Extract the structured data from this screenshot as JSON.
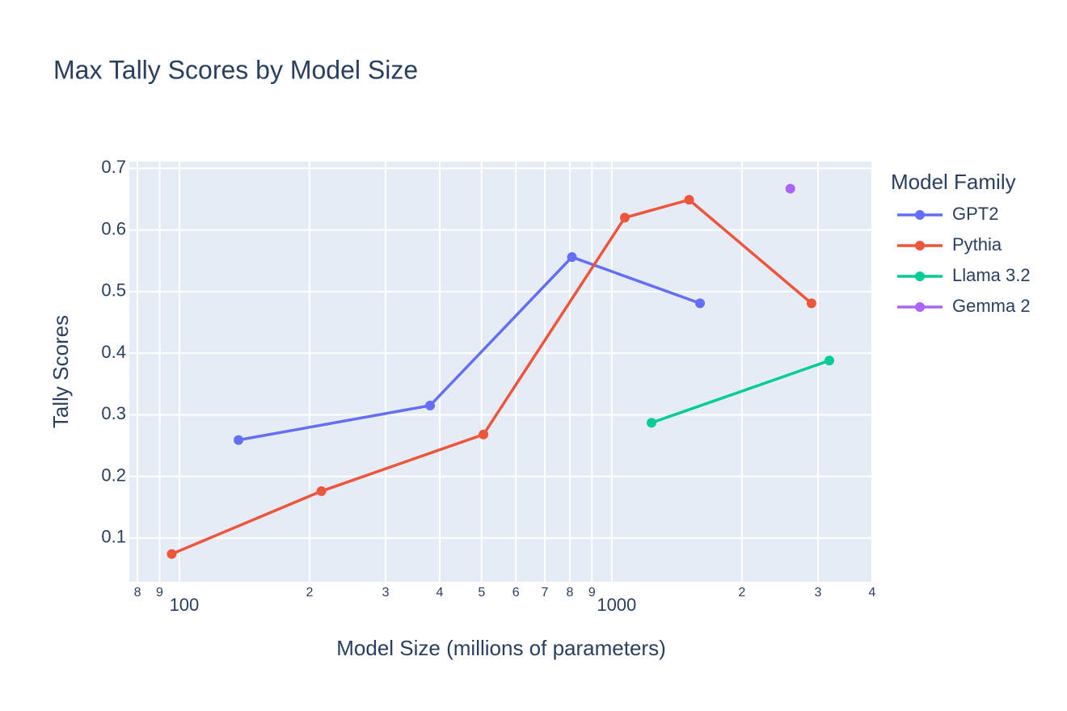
{
  "chart_data": {
    "type": "line",
    "title": "Max Tally Scores by Model Size",
    "x_label": "Model Size (millions of parameters)",
    "y_label": "Tally Scores",
    "legend_title": "Model Family",
    "legend": "right",
    "grid": true,
    "xlog": true,
    "xlim": [
      76.6,
      4020
    ],
    "ylim": [
      0.029,
      0.711
    ],
    "xticks": [
      {
        "value": 80,
        "label": "8"
      },
      {
        "value": 90,
        "label": "9"
      },
      100,
      {
        "value": 200,
        "label": "2"
      },
      {
        "value": 300,
        "label": "3"
      },
      {
        "value": 400,
        "label": "4"
      },
      {
        "value": 500,
        "label": "5"
      },
      {
        "value": 600,
        "label": "6"
      },
      {
        "value": 700,
        "label": "7"
      },
      {
        "value": 800,
        "label": "8"
      },
      {
        "value": 900,
        "label": "9"
      },
      1000,
      {
        "value": 2000,
        "label": "2"
      },
      {
        "value": 3000,
        "label": "3"
      },
      {
        "value": 4000,
        "label": "4"
      }
    ],
    "yticks": [
      0.1,
      0.2,
      0.3,
      0.4,
      0.5,
      0.6,
      0.7
    ],
    "series": [
      {
        "name": "GPT2",
        "color": "#636efa",
        "x": [
          137,
          380,
          809,
          1600
        ],
        "values": [
          0.259,
          0.315,
          0.556,
          0.481
        ]
      },
      {
        "name": "Pythia",
        "color": "#ef553b",
        "x": [
          96,
          213,
          505,
          1072,
          1510,
          2897
        ],
        "values": [
          0.074,
          0.176,
          0.268,
          0.62,
          0.649,
          0.481
        ]
      },
      {
        "name": "Llama 3.2",
        "color": "#00cc96",
        "x": [
          1236,
          3186
        ],
        "values": [
          0.287,
          0.388
        ]
      },
      {
        "name": "Gemma 2",
        "color": "#ab63fa",
        "x": [
          2588
        ],
        "values": [
          0.667
        ]
      }
    ]
  }
}
